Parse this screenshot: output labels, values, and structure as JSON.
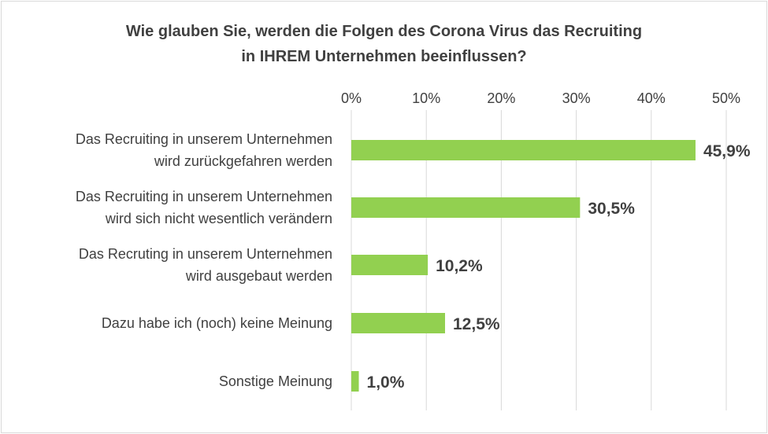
{
  "chart_data": {
    "type": "bar",
    "orientation": "horizontal",
    "title": [
      "Wie glauben Sie, werden die Folgen des Corona Virus das Recruiting",
      "in IHREM Unternehmen beeinflussen?"
    ],
    "categories": [
      [
        "Das Recruiting in unserem Unternehmen",
        "wird zurückgefahren werden"
      ],
      [
        "Das Recruiting in unserem Unternehmen",
        "wird sich nicht wesentlich verändern"
      ],
      [
        "Das Recruting in unserem Unternehmen",
        "wird ausgebaut werden"
      ],
      [
        "Dazu habe ich (noch) keine Meinung"
      ],
      [
        "Sonstige Meinung"
      ]
    ],
    "values": [
      45.9,
      30.5,
      10.2,
      12.5,
      1.0
    ],
    "value_labels": [
      "45,9%",
      "30,5%",
      "10,2%",
      "12,5%",
      "1,0%"
    ],
    "xticks": [
      "0%",
      "10%",
      "20%",
      "30%",
      "40%",
      "50%"
    ],
    "xlim": [
      0,
      50
    ],
    "x_axis_position": "top",
    "grid": "vertical",
    "legend": "none",
    "bar_color": "#92d050",
    "text_color": "#404040",
    "grid_color": "#d9d9d9"
  }
}
